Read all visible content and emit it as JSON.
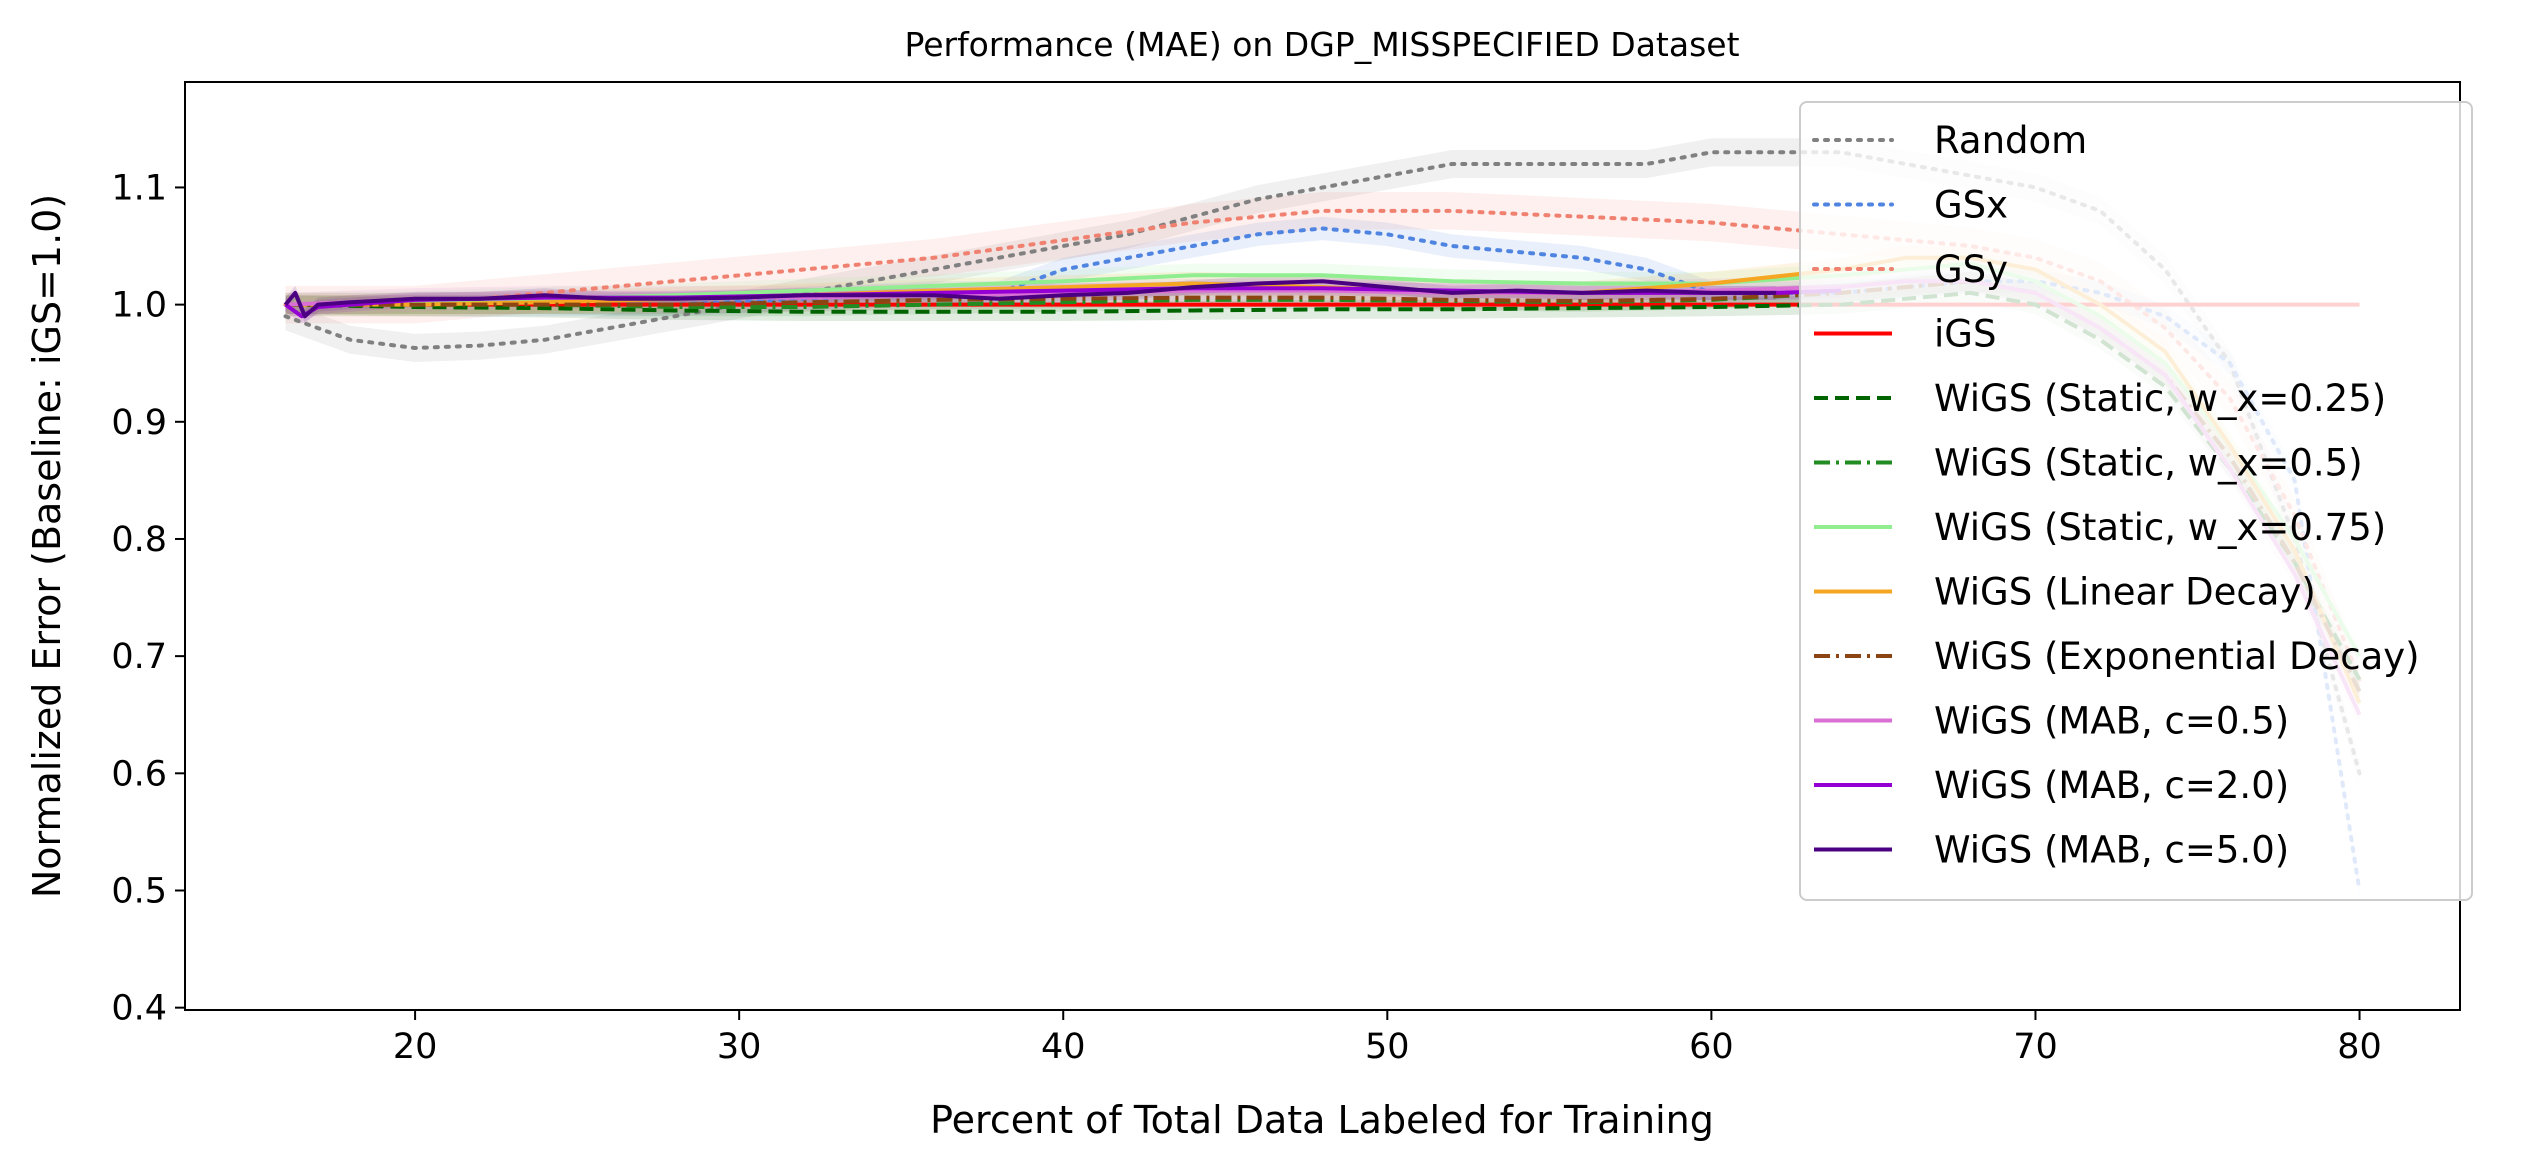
{
  "chart_data": {
    "type": "line",
    "title": "Performance (MAE) on DGP_MISSPECIFIED Dataset",
    "xlabel": "Percent of Total Data Labeled for Training",
    "ylabel": "Normalized Error (Baseline: iGS=1.0)",
    "xlim": [
      12.9,
      83.1
    ],
    "ylim": [
      0.398,
      1.19
    ],
    "xticks": [
      20,
      30,
      40,
      50,
      60,
      70,
      80
    ],
    "yticks": [
      0.4,
      0.5,
      0.6,
      0.7,
      0.8,
      0.9,
      1.0,
      1.1
    ],
    "grid": false,
    "legend_position": "top-right",
    "series": [
      {
        "name": "Random",
        "color": "#808080",
        "style": "dotted",
        "band": 0.012,
        "x": [
          16,
          17,
          18,
          20,
          22,
          24,
          26,
          28,
          30,
          32,
          34,
          36,
          38,
          40,
          42,
          44,
          46,
          48,
          50,
          52,
          54,
          56,
          58,
          60,
          62,
          64,
          66,
          68,
          70,
          72,
          74,
          76,
          78,
          80
        ],
        "y": [
          0.99,
          0.98,
          0.97,
          0.963,
          0.965,
          0.97,
          0.98,
          0.99,
          1.0,
          1.01,
          1.02,
          1.03,
          1.04,
          1.05,
          1.06,
          1.075,
          1.09,
          1.1,
          1.11,
          1.12,
          1.12,
          1.12,
          1.12,
          1.13,
          1.13,
          1.13,
          1.12,
          1.11,
          1.1,
          1.08,
          1.03,
          0.95,
          0.8,
          0.6
        ]
      },
      {
        "name": "GSx",
        "color": "#4F84E0",
        "style": "dotted",
        "band": 0.01,
        "x": [
          16,
          20,
          24,
          28,
          32,
          36,
          38,
          39,
          40,
          42,
          44,
          46,
          48,
          50,
          52,
          54,
          56,
          58,
          60,
          62,
          64,
          66,
          68,
          70,
          72,
          74,
          76,
          78,
          80
        ],
        "y": [
          1.0,
          1.0,
          1.0,
          1.0,
          1.005,
          1.01,
          1.01,
          1.02,
          1.03,
          1.04,
          1.05,
          1.06,
          1.065,
          1.06,
          1.05,
          1.045,
          1.04,
          1.03,
          1.01,
          1.01,
          1.01,
          1.015,
          1.02,
          1.02,
          1.01,
          0.99,
          0.95,
          0.85,
          0.5
        ]
      },
      {
        "name": "GSy",
        "color": "#F08070",
        "style": "dotted",
        "band": 0.016,
        "x": [
          16,
          20,
          24,
          28,
          32,
          36,
          40,
          44,
          48,
          52,
          56,
          60,
          64,
          68,
          70,
          72,
          74,
          76,
          78,
          80
        ],
        "y": [
          1.0,
          1.0,
          1.01,
          1.02,
          1.03,
          1.04,
          1.055,
          1.07,
          1.08,
          1.08,
          1.075,
          1.07,
          1.06,
          1.05,
          1.04,
          1.02,
          0.98,
          0.92,
          0.82,
          0.68
        ]
      },
      {
        "name": "iGS",
        "color": "#FF0000",
        "style": "solid",
        "band": 0,
        "x": [
          16,
          80
        ],
        "y": [
          1.0,
          1.0
        ]
      },
      {
        "name": "WiGS (Static, w_x=0.25)",
        "color": "#006400",
        "style": "dashed",
        "band": 0.008,
        "x": [
          16,
          20,
          24,
          28,
          32,
          36,
          40,
          44,
          48,
          52,
          56,
          60,
          64,
          66,
          68,
          70,
          72,
          74,
          76,
          78,
          80
        ],
        "y": [
          1.0,
          0.998,
          0.997,
          0.995,
          0.994,
          0.994,
          0.994,
          0.995,
          0.996,
          0.996,
          0.997,
          0.998,
          1.0,
          1.005,
          1.01,
          1.0,
          0.97,
          0.93,
          0.86,
          0.78,
          0.68
        ]
      },
      {
        "name": "WiGS (Static, w_x=0.5)",
        "color": "#228B22",
        "style": "dashdot",
        "band": 0.008,
        "x": [
          16,
          20,
          24,
          28,
          32,
          36,
          40,
          44,
          48,
          52,
          56,
          60,
          64,
          66,
          68,
          70,
          72,
          74,
          76,
          78,
          80
        ],
        "y": [
          1.0,
          1.0,
          1.0,
          0.998,
          0.998,
          1.0,
          1.002,
          1.004,
          1.004,
          1.003,
          1.002,
          1.004,
          1.01,
          1.015,
          1.02,
          1.01,
          0.98,
          0.94,
          0.87,
          0.78,
          0.67
        ]
      },
      {
        "name": "WiGS (Static, w_x=0.75)",
        "color": "#90EE90",
        "style": "solid",
        "band": 0.01,
        "x": [
          16,
          20,
          24,
          28,
          32,
          36,
          40,
          44,
          48,
          52,
          56,
          60,
          64,
          66,
          68,
          70,
          72,
          74,
          76,
          78,
          80
        ],
        "y": [
          1.0,
          1.002,
          1.005,
          1.008,
          1.012,
          1.016,
          1.02,
          1.025,
          1.025,
          1.02,
          1.018,
          1.018,
          1.025,
          1.03,
          1.035,
          1.02,
          0.99,
          0.95,
          0.88,
          0.8,
          0.7
        ]
      },
      {
        "name": "WiGS (Linear Decay)",
        "color": "#F5A623",
        "style": "solid",
        "band": 0.01,
        "x": [
          16,
          20,
          24,
          28,
          32,
          36,
          40,
          44,
          48,
          52,
          56,
          60,
          64,
          66,
          68,
          70,
          72,
          74,
          76,
          78,
          80
        ],
        "y": [
          1.0,
          1.0,
          1.002,
          1.005,
          1.008,
          1.012,
          1.015,
          1.018,
          1.015,
          1.01,
          1.01,
          1.018,
          1.03,
          1.04,
          1.04,
          1.03,
          1.0,
          0.96,
          0.88,
          0.79,
          0.66
        ]
      },
      {
        "name": "WiGS (Exponential Decay)",
        "color": "#8B4513",
        "style": "dashdot",
        "band": 0.008,
        "x": [
          16,
          20,
          24,
          28,
          32,
          36,
          40,
          44,
          48,
          52,
          56,
          60,
          64,
          66,
          68,
          70,
          72,
          74,
          76,
          78,
          80
        ],
        "y": [
          1.0,
          1.0,
          1.0,
          1.0,
          1.002,
          1.004,
          1.005,
          1.006,
          1.006,
          1.004,
          1.003,
          1.005,
          1.01,
          1.015,
          1.02,
          1.01,
          0.98,
          0.94,
          0.87,
          0.78,
          0.67
        ]
      },
      {
        "name": "WiGS (MAB, c=0.5)",
        "color": "#DA70D6",
        "style": "solid",
        "band": 0.01,
        "x": [
          16,
          20,
          24,
          28,
          32,
          36,
          40,
          44,
          48,
          52,
          56,
          60,
          64,
          66,
          68,
          70,
          72,
          74,
          76,
          78,
          80
        ],
        "y": [
          1.0,
          1.004,
          1.006,
          1.006,
          1.006,
          1.008,
          1.01,
          1.012,
          1.012,
          1.01,
          1.01,
          1.012,
          1.015,
          1.02,
          1.02,
          1.01,
          0.98,
          0.94,
          0.86,
          0.77,
          0.65
        ]
      },
      {
        "name": "WiGS (MAB, c=2.0)",
        "color": "#9400D3",
        "style": "solid",
        "band": 0.006,
        "x": [
          16,
          16.5,
          17,
          18,
          20,
          24,
          28,
          32,
          36,
          40,
          44,
          48,
          52,
          56,
          60,
          62,
          64
        ],
        "y": [
          1.0,
          0.99,
          0.998,
          1.0,
          1.004,
          1.006,
          1.006,
          1.008,
          1.01,
          1.012,
          1.014,
          1.014,
          1.012,
          1.01,
          1.01,
          1.01,
          1.012
        ]
      },
      {
        "name": "WiGS (MAB, c=5.0)",
        "color": "#4B0082",
        "style": "solid",
        "band": 0.006,
        "x": [
          16,
          16.3,
          16.6,
          17,
          18,
          20,
          22,
          24,
          26,
          28,
          30,
          32,
          34,
          36,
          38,
          40,
          42,
          44,
          46,
          48,
          50,
          52,
          54,
          56,
          58,
          60,
          62
        ],
        "y": [
          1.0,
          1.01,
          0.99,
          1.0,
          1.002,
          1.005,
          1.005,
          1.008,
          1.005,
          1.005,
          1.006,
          1.008,
          1.008,
          1.008,
          1.005,
          1.008,
          1.01,
          1.015,
          1.018,
          1.02,
          1.015,
          1.01,
          1.012,
          1.01,
          1.012,
          1.01,
          1.01
        ]
      }
    ]
  }
}
